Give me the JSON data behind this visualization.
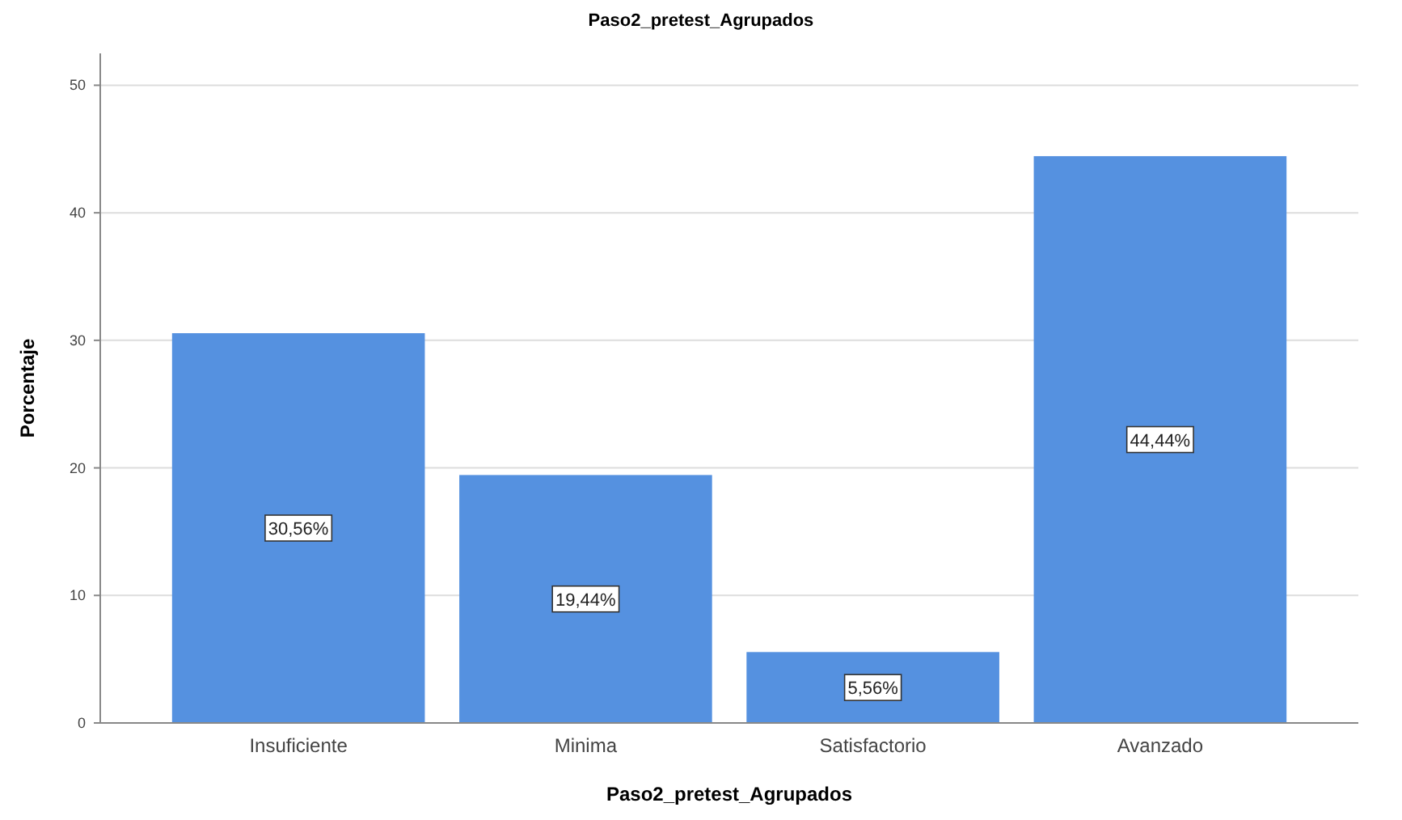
{
  "chart_data": {
    "type": "bar",
    "title": "Paso2_pretest_Agrupados",
    "xlabel": "Paso2_pretest_Agrupados",
    "ylabel": "Porcentaje",
    "categories": [
      "Insuficiente",
      "Minima",
      "Satisfactorio",
      "Avanzado"
    ],
    "values": [
      30.56,
      19.44,
      5.56,
      44.44
    ],
    "value_labels": [
      "30,56%",
      "19,44%",
      "5,56%",
      "44,44%"
    ],
    "color": "#5591e0",
    "ylim": [
      0,
      52.5
    ],
    "yticks": [
      0,
      10,
      20,
      30,
      40,
      50
    ],
    "grid": "y"
  }
}
